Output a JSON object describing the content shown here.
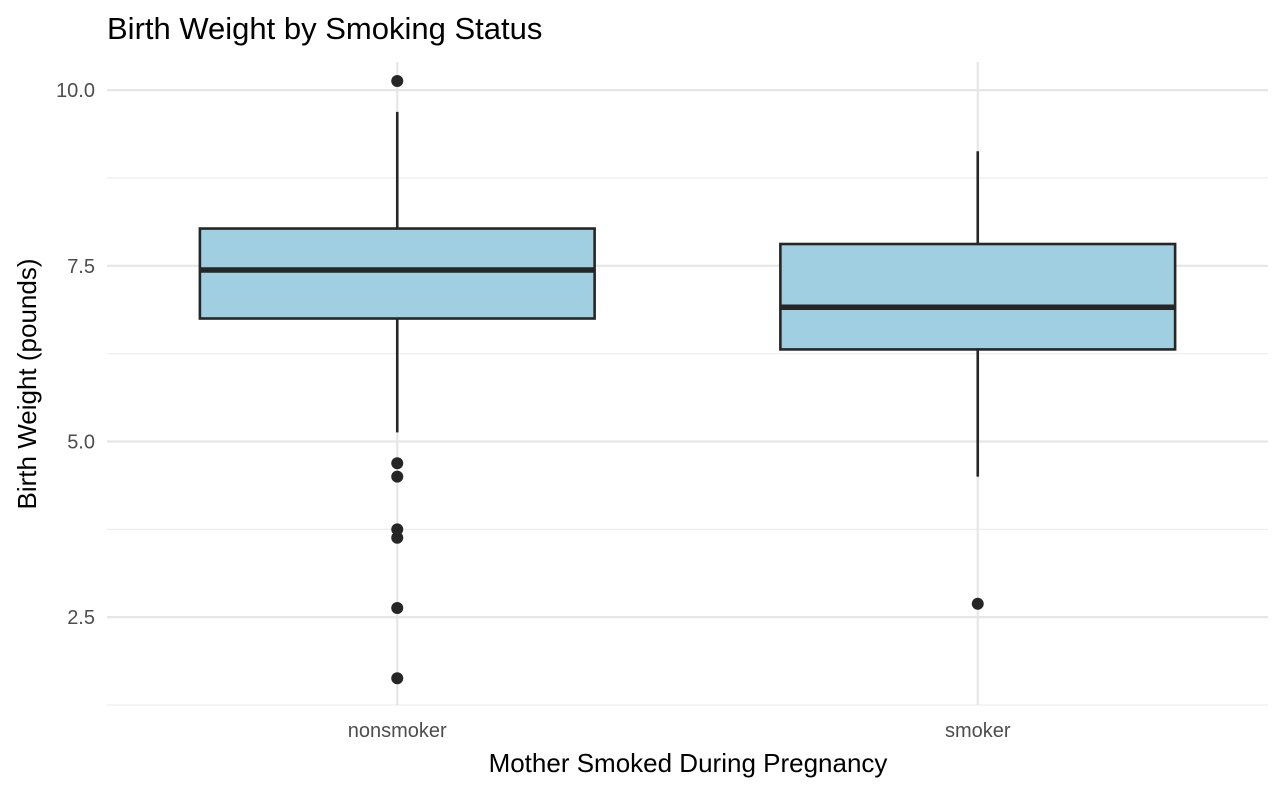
{
  "chart_data": {
    "type": "boxplot",
    "title": "Birth Weight by Smoking Status",
    "xlabel": "Mother Smoked During Pregnancy",
    "ylabel": "Birth Weight (pounds)",
    "categories": [
      "nonsmoker",
      "smoker"
    ],
    "ylim": [
      1.25,
      10.4
    ],
    "yticks": [
      2.5,
      5.0,
      7.5,
      10.0
    ],
    "ytick_labels": [
      "2.5",
      "5.0",
      "7.5",
      "10.0"
    ],
    "grid": true,
    "box_fill": "#9fcfe0",
    "box_stroke": "#262626",
    "boxes": [
      {
        "category": "nonsmoker",
        "whisker_low": 5.13,
        "q1": 6.75,
        "median": 7.44,
        "q3": 8.03,
        "whisker_high": 9.69,
        "outliers": [
          10.13,
          4.69,
          4.5,
          3.75,
          3.63,
          2.63,
          1.63
        ]
      },
      {
        "category": "smoker",
        "whisker_low": 4.5,
        "q1": 6.31,
        "median": 6.91,
        "q3": 7.81,
        "whisker_high": 9.13,
        "outliers": [
          2.69
        ]
      }
    ]
  }
}
